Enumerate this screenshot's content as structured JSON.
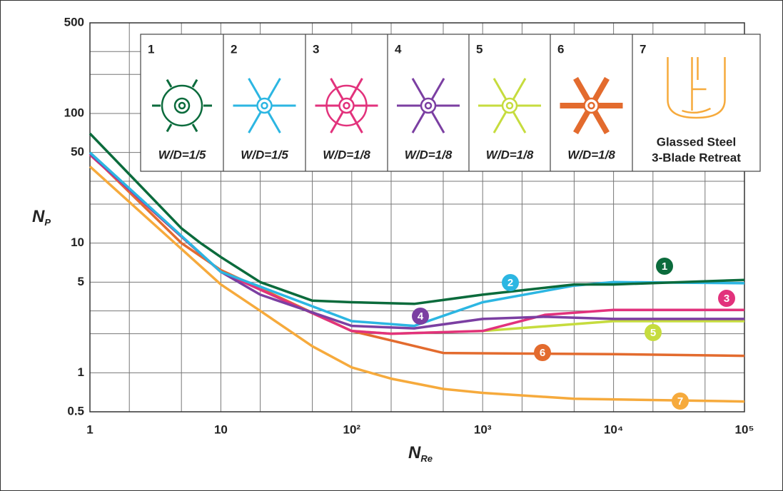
{
  "chart_data": {
    "type": "line",
    "log_x": true,
    "log_y": true,
    "grid": true,
    "xlabel": [
      "N",
      "Re"
    ],
    "ylabel": [
      "N",
      "P"
    ],
    "xlim": [
      1,
      100000
    ],
    "ylim": [
      0.5,
      500
    ],
    "xticks": [
      1,
      10,
      {
        "value": 100,
        "label": "10²"
      },
      {
        "value": 1000,
        "label": "10³"
      },
      {
        "value": 10000,
        "label": "10⁴"
      },
      {
        "value": 100000,
        "label": "10⁵"
      }
    ],
    "yticks": [
      0.5,
      1,
      5,
      10,
      50,
      100,
      500
    ],
    "xgrid": [
      1,
      2,
      5,
      10,
      20,
      50,
      100,
      200,
      500,
      1000,
      2000,
      5000,
      10000,
      20000,
      50000,
      100000
    ],
    "ygrid": [
      0.5,
      1,
      2,
      3,
      5,
      10,
      20,
      30,
      50,
      100,
      200,
      300,
      500
    ],
    "series": [
      {
        "name": "1",
        "color": "#0b6b3c",
        "caption": [
          "W/D=1/5"
        ],
        "x": [
          1,
          5,
          7,
          10,
          20,
          50,
          100,
          300,
          1000,
          5000,
          10000,
          100000
        ],
        "values": [
          70,
          13,
          10,
          7.8,
          5,
          3.6,
          3.5,
          3.4,
          4,
          4.8,
          4.8,
          5.2
        ]
      },
      {
        "name": "2",
        "color": "#2cb6e2",
        "caption": [
          "W/D=1/5"
        ],
        "x": [
          1,
          10,
          100,
          300,
          1000,
          5000,
          10000,
          100000
        ],
        "values": [
          50,
          6,
          2.5,
          2.3,
          3.5,
          4.7,
          5,
          4.9
        ]
      },
      {
        "name": "3",
        "color": "#e2327c",
        "caption": [
          "W/D=1/8"
        ],
        "x": [
          1,
          10,
          100,
          200,
          1000,
          3000,
          10000,
          100000
        ],
        "values": [
          48,
          6,
          2.1,
          2,
          2.1,
          2.8,
          3.05,
          3.05
        ]
      },
      {
        "name": "4",
        "color": "#7b3fa2",
        "caption": [
          "W/D=1/8"
        ],
        "x": [
          1,
          10,
          20,
          100,
          300,
          1000,
          3000,
          10000,
          100000
        ],
        "values": [
          49,
          6,
          4,
          2.3,
          2.2,
          2.6,
          2.7,
          2.6,
          2.6
        ]
      },
      {
        "name": "5",
        "color": "#c6dc3e",
        "caption": [
          "W/D=1/8"
        ],
        "x": [
          1,
          10,
          100,
          200,
          1000,
          10000,
          100000
        ],
        "values": [
          48,
          6,
          2.1,
          2,
          2.1,
          2.5,
          2.5
        ]
      },
      {
        "name": "6",
        "color": "#e36b2e",
        "caption": [
          "W/D=1/8"
        ],
        "x": [
          1,
          5,
          10,
          100,
          500,
          10000,
          100000
        ],
        "values": [
          49,
          10,
          6.2,
          2.1,
          1.42,
          1.39,
          1.35
        ]
      },
      {
        "name": "7",
        "color": "#f6aa3c",
        "caption": [
          "Glassed Steel",
          "3-Blade Retreat"
        ],
        "x": [
          1,
          10,
          20,
          50,
          100,
          200,
          500,
          1000,
          5000,
          100000
        ],
        "values": [
          39,
          4.8,
          3,
          1.6,
          1.1,
          0.9,
          0.75,
          0.7,
          0.63,
          0.6
        ]
      }
    ]
  }
}
